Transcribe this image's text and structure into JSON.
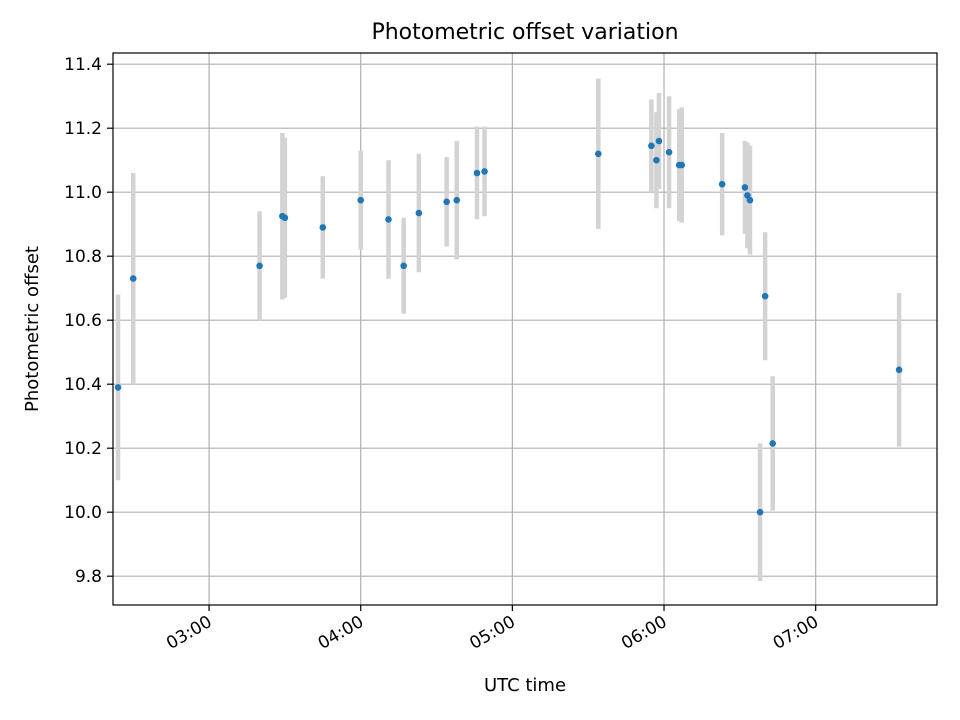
{
  "chart_data": {
    "type": "scatter",
    "title": "Photometric offset variation",
    "xlabel": "UTC time",
    "ylabel": "Photometric offset",
    "xlim": [
      "02:22",
      "07:48"
    ],
    "ylim": [
      9.71,
      11.435
    ],
    "x_ticks": [
      "03:00",
      "04:00",
      "05:00",
      "06:00",
      "07:00"
    ],
    "y_ticks": [
      9.8,
      10.0,
      10.2,
      10.4,
      10.6,
      10.8,
      11.0,
      11.2,
      11.4
    ],
    "grid": true,
    "colors": {
      "point": "#1f77b4",
      "errorbar": "#d3d3d3",
      "grid": "#b0b0b0"
    },
    "points": [
      {
        "x": "02:24",
        "y": 10.39,
        "err": 0.29
      },
      {
        "x": "02:30",
        "y": 10.73,
        "err": 0.33
      },
      {
        "x": "03:20",
        "y": 10.77,
        "err": 0.17
      },
      {
        "x": "03:29",
        "y": 10.925,
        "err": 0.26
      },
      {
        "x": "03:30",
        "y": 10.92,
        "err": 0.25
      },
      {
        "x": "03:45",
        "y": 10.89,
        "err": 0.16
      },
      {
        "x": "04:00",
        "y": 10.975,
        "err": 0.155
      },
      {
        "x": "04:11",
        "y": 10.915,
        "err": 0.185
      },
      {
        "x": "04:17",
        "y": 10.77,
        "err": 0.15
      },
      {
        "x": "04:23",
        "y": 10.935,
        "err": 0.185
      },
      {
        "x": "04:34",
        "y": 10.97,
        "err": 0.14
      },
      {
        "x": "04:38",
        "y": 10.975,
        "err": 0.185
      },
      {
        "x": "04:46",
        "y": 11.06,
        "err": 0.145
      },
      {
        "x": "04:49",
        "y": 11.065,
        "err": 0.14
      },
      {
        "x": "05:34",
        "y": 11.12,
        "err": 0.235
      },
      {
        "x": "05:55",
        "y": 11.145,
        "err": 0.145
      },
      {
        "x": "05:57",
        "y": 11.1,
        "err": 0.15
      },
      {
        "x": "05:58",
        "y": 11.16,
        "err": 0.15
      },
      {
        "x": "06:02",
        "y": 11.125,
        "err": 0.175
      },
      {
        "x": "06:06",
        "y": 11.085,
        "err": 0.175
      },
      {
        "x": "06:07",
        "y": 11.085,
        "err": 0.18
      },
      {
        "x": "06:23",
        "y": 11.025,
        "err": 0.16
      },
      {
        "x": "06:32",
        "y": 11.015,
        "err": 0.145
      },
      {
        "x": "06:33",
        "y": 10.99,
        "err": 0.165
      },
      {
        "x": "06:34",
        "y": 10.975,
        "err": 0.17
      },
      {
        "x": "06:38",
        "y": 10.0,
        "err": 0.215
      },
      {
        "x": "06:40",
        "y": 10.675,
        "err": 0.2
      },
      {
        "x": "06:43",
        "y": 10.215,
        "err": 0.21
      },
      {
        "x": "07:33",
        "y": 10.445,
        "err": 0.24
      }
    ]
  }
}
